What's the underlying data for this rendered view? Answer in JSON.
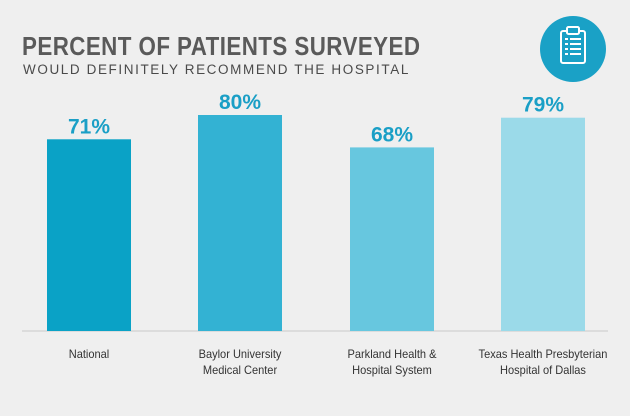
{
  "header": {
    "title": "PERCENT OF PATIENTS SURVEYED",
    "subtitle": "WOULD DEFINITELY RECOMMEND THE HOSPITAL",
    "icon": "clipboard-icon"
  },
  "chart_data": {
    "type": "bar",
    "title": "PERCENT OF PATIENTS SURVEYED",
    "subtitle": "WOULD DEFINITELY RECOMMEND THE HOSPITAL",
    "categories": [
      "National",
      "Baylor University Medical Center",
      "Parkland Health & Hospital System",
      "Texas Health Presbyterian Hospital of Dallas"
    ],
    "category_lines": [
      [
        "National"
      ],
      [
        "Baylor University",
        "Medical Center"
      ],
      [
        "Parkland Health &",
        "Hospital System"
      ],
      [
        "Texas Health Presbyterian",
        "Hospital of Dallas"
      ]
    ],
    "values": [
      71,
      80,
      68,
      79
    ],
    "data_labels": [
      "71%",
      "80%",
      "68%",
      "79%"
    ],
    "ylim": [
      0,
      100
    ],
    "grid": false,
    "legend": "none",
    "colors": [
      "#0aa2c6",
      "#33b2d3",
      "#67c7df",
      "#9bdae9"
    ],
    "label_color": "#1a9fc6",
    "axis_color": "#c9c9c9"
  }
}
